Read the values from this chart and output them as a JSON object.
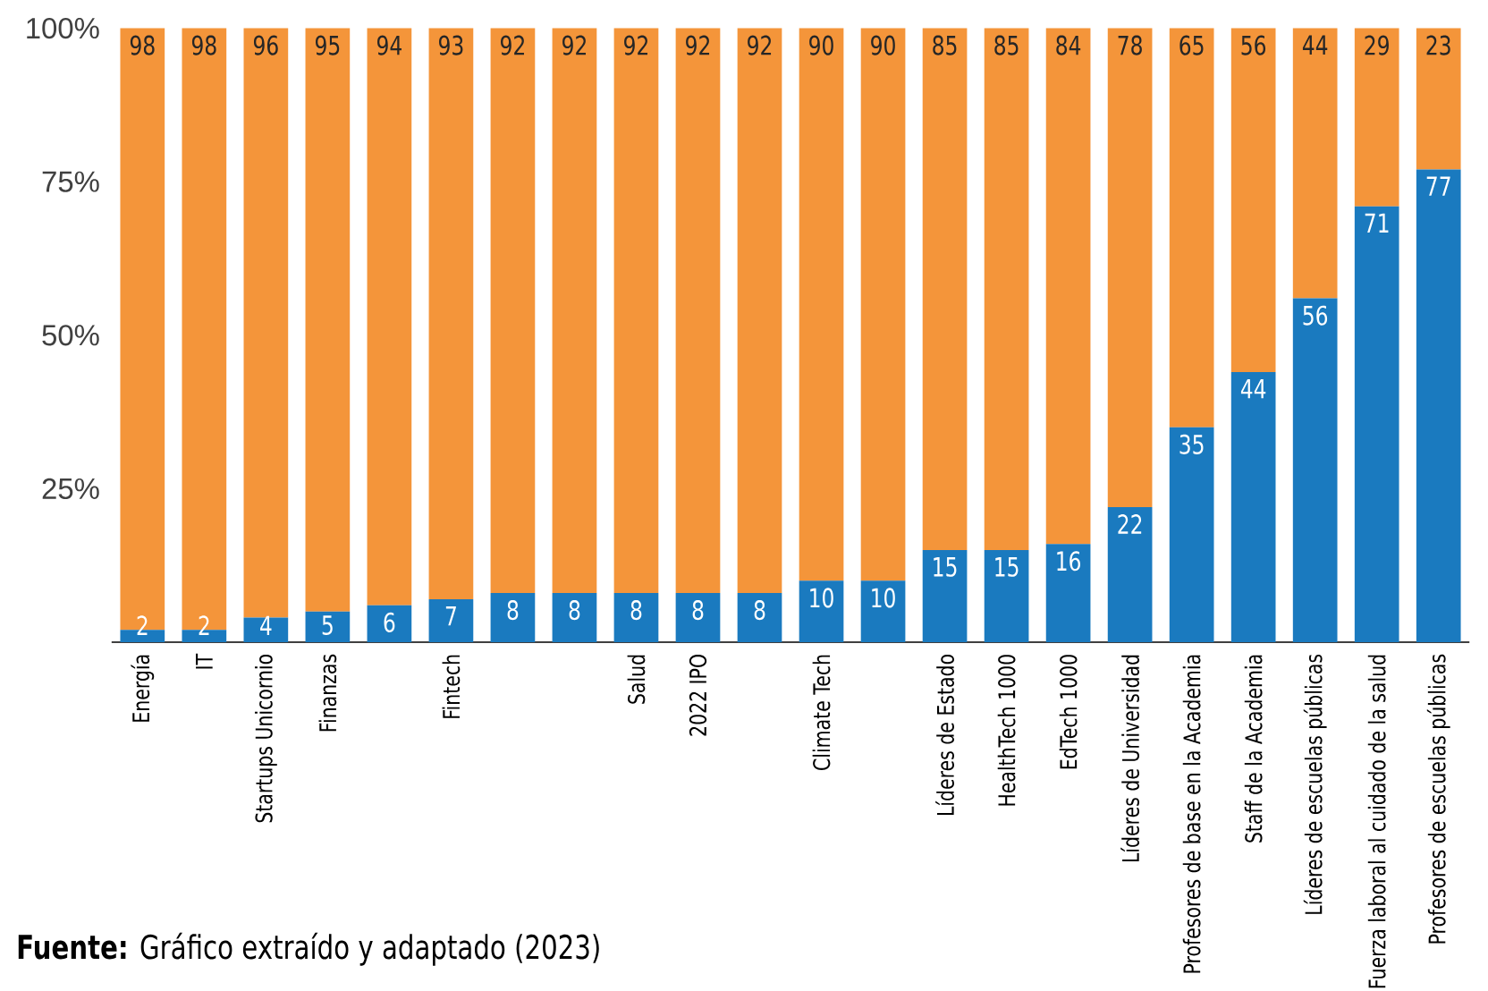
{
  "chart_data": {
    "type": "bar",
    "stacked": true,
    "categories": [
      "Energía",
      "IT",
      "Startups Unicornio",
      "Finanzas",
      null,
      "Fintech",
      null,
      null,
      "Salud",
      "2022 IPO",
      null,
      "Climate Tech",
      null,
      "Líderes de Estado",
      "HealthTech 1000",
      "EdTech 1000",
      "Líderes de Universidad",
      "Profesores de base en la Academia",
      "Staff de la Academia",
      "Líderes de escuelas públicas",
      "Fuerza laboral al cuidado de la salud",
      "Profesores de escuelas públicas"
    ],
    "series": [
      {
        "color": "#1a7abf",
        "values": [
          2,
          2,
          4,
          5,
          6,
          7,
          8,
          8,
          8,
          8,
          8,
          10,
          10,
          15,
          15,
          16,
          22,
          35,
          44,
          56,
          71,
          77
        ]
      },
      {
        "color": "#f4953a",
        "values": [
          98,
          98,
          96,
          95,
          94,
          93,
          92,
          92,
          92,
          92,
          92,
          90,
          90,
          85,
          85,
          84,
          78,
          65,
          56,
          44,
          29,
          23
        ]
      }
    ],
    "ylim": [
      0,
      100
    ],
    "yticks": [
      {
        "value": 25,
        "label": "25%"
      },
      {
        "value": 50,
        "label": "50%"
      },
      {
        "value": 75,
        "label": "75%"
      },
      {
        "value": 100,
        "label": "100%"
      }
    ],
    "data_labels": true,
    "annotations": [
      "**Fuente:** Gráfico extraído y adaptado (2023)"
    ]
  }
}
